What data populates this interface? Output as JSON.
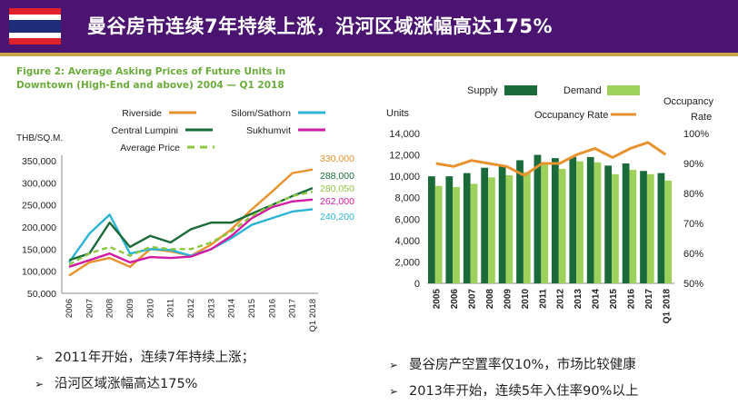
{
  "header": {
    "title": "曼谷房市连续7年持续上涨，沿河区域涨幅高达175%",
    "flag_colors": [
      "#e0202a",
      "#ffffff",
      "#1f2c7a"
    ]
  },
  "left_chart": {
    "figure_title": "Figure 2: Average Asking Prices of Future Units in Downtown (High-End and above) 2004 — Q1 2018"
  },
  "chart_data": [
    {
      "type": "line",
      "title": "Figure 2: Average Asking Prices of Future Units in Downtown (High-End and above) 2004 — Q1 2018",
      "ylabel": "THB/SQ.M.",
      "ylim": [
        50000,
        350000
      ],
      "yticks": [
        "350,000",
        "300,000",
        "250,000",
        "200,000",
        "150,000",
        "100,000",
        "50,000"
      ],
      "categories": [
        "2006",
        "2007",
        "2008",
        "2009",
        "2010",
        "2011",
        "2012",
        "2013",
        "2014",
        "2015",
        "2016",
        "2017",
        "Q1 2018"
      ],
      "legend_placement": "top",
      "series": [
        {
          "name": "Riverside",
          "color": "#e8922d",
          "dashed": false,
          "values": [
            90000,
            120000,
            130000,
            110000,
            150000,
            145000,
            135000,
            160000,
            195000,
            240000,
            280000,
            322000,
            330000
          ],
          "end_label": "330,000"
        },
        {
          "name": "Silom/Sathorn",
          "color": "#2ab4d6",
          "dashed": false,
          "values": [
            120000,
            185000,
            228000,
            140000,
            150000,
            148000,
            135000,
            150000,
            175000,
            205000,
            220000,
            235000,
            240200
          ],
          "end_label": "240,200"
        },
        {
          "name": "Central Lumpini",
          "color": "#1b6b3a",
          "dashed": false,
          "values": [
            125000,
            140000,
            210000,
            155000,
            180000,
            165000,
            195000,
            210000,
            210000,
            230000,
            250000,
            270000,
            288000
          ],
          "end_label": "288,000"
        },
        {
          "name": "Sukhumvit",
          "color": "#d21ba2",
          "dashed": false,
          "values": [
            110000,
            125000,
            140000,
            120000,
            132000,
            130000,
            133000,
            150000,
            180000,
            220000,
            245000,
            258000,
            262000
          ],
          "end_label": "262,000"
        },
        {
          "name": "Average Price",
          "color": "#8cc63f",
          "dashed": true,
          "values": [
            115000,
            140000,
            155000,
            135000,
            155000,
            150000,
            150000,
            165000,
            190000,
            225000,
            250000,
            270000,
            280050
          ],
          "end_label": "280,050"
        }
      ]
    },
    {
      "type": "bar",
      "ylabel": "Units",
      "y2label": "Occupancy Rate",
      "ylim": [
        0,
        14000
      ],
      "y2lim": [
        50,
        100
      ],
      "yticks": [
        "14,000",
        "12,000",
        "10,000",
        "8,000",
        "6,000",
        "4,000",
        "2,000",
        "0"
      ],
      "y2ticks": [
        "100%",
        "90%",
        "80%",
        "70%",
        "60%",
        "50%"
      ],
      "categories": [
        "2005",
        "2006",
        "2007",
        "2008",
        "2009",
        "2010",
        "2011",
        "2012",
        "2013",
        "2014",
        "2015",
        "2016",
        "2017",
        "Q1 2018"
      ],
      "legend_placement": "top",
      "series": [
        {
          "name": "Supply",
          "type": "bar",
          "color": "#1b6b3a",
          "values": [
            10000,
            10000,
            10300,
            10800,
            11000,
            11500,
            12000,
            11700,
            11800,
            11800,
            11000,
            11200,
            10500,
            10300
          ]
        },
        {
          "name": "Demand",
          "type": "bar",
          "color": "#9ed15b",
          "values": [
            9100,
            9000,
            9300,
            9900,
            10100,
            10400,
            11200,
            10700,
            11400,
            11300,
            10200,
            10600,
            10200,
            9600
          ]
        },
        {
          "name": "Occupancy Rate",
          "type": "line",
          "axis": "right",
          "color": "#e8922d",
          "values": [
            90,
            89,
            91,
            90,
            89,
            86,
            90,
            90,
            93,
            95,
            92,
            95,
            97,
            93
          ]
        }
      ]
    }
  ],
  "bullets_left": [
    "2011年开始，连续7年持续上涨；",
    "沿河区域涨幅高达175%"
  ],
  "bullets_right": [
    "曼谷房产空置率仅10%，市场比较健康",
    "2013年开始，连续5年入住率90%以上"
  ]
}
